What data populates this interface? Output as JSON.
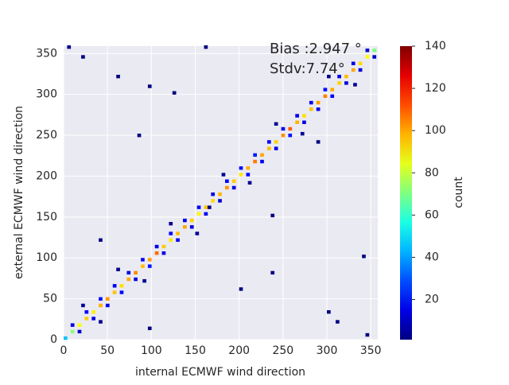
{
  "chart_data": {
    "type": "hist2d",
    "xlabel": "internal ECMWF wind direction",
    "ylabel": "external ECMWF wind direction",
    "annotations": [
      "Bias :2.947 °",
      "Stdv:7.74°"
    ],
    "colorbar_label": "count",
    "colormap": "jet",
    "bins": 90,
    "xlim": [
      0,
      358
    ],
    "ylim": [
      0,
      359
    ],
    "xticks": [
      0,
      50,
      100,
      150,
      200,
      250,
      300,
      350
    ],
    "yticks": [
      0,
      50,
      100,
      150,
      200,
      250,
      300,
      350
    ],
    "clim": [
      1,
      140
    ],
    "cticks": [
      20,
      40,
      60,
      80,
      100,
      120,
      140
    ],
    "grid": true,
    "cells": [
      [
        0,
        0,
        45
      ],
      [
        8,
        8,
        72
      ],
      [
        16,
        16,
        88
      ],
      [
        24,
        24,
        95
      ],
      [
        32,
        32,
        90
      ],
      [
        40,
        40,
        98
      ],
      [
        48,
        48,
        102
      ],
      [
        56,
        56,
        96
      ],
      [
        64,
        64,
        92
      ],
      [
        72,
        72,
        99
      ],
      [
        80,
        80,
        104
      ],
      [
        88,
        88,
        97
      ],
      [
        96,
        96,
        101
      ],
      [
        104,
        104,
        108
      ],
      [
        112,
        112,
        95
      ],
      [
        120,
        120,
        91
      ],
      [
        128,
        128,
        97
      ],
      [
        136,
        136,
        100
      ],
      [
        144,
        144,
        94
      ],
      [
        152,
        152,
        89
      ],
      [
        160,
        160,
        96
      ],
      [
        168,
        168,
        93
      ],
      [
        176,
        176,
        98
      ],
      [
        184,
        184,
        102
      ],
      [
        192,
        192,
        95
      ],
      [
        200,
        200,
        91
      ],
      [
        208,
        208,
        99
      ],
      [
        216,
        216,
        106
      ],
      [
        224,
        224,
        100
      ],
      [
        232,
        232,
        97
      ],
      [
        240,
        240,
        94
      ],
      [
        248,
        248,
        103
      ],
      [
        256,
        256,
        110
      ],
      [
        264,
        264,
        98
      ],
      [
        272,
        272,
        92
      ],
      [
        280,
        280,
        96
      ],
      [
        288,
        288,
        101
      ],
      [
        296,
        296,
        105
      ],
      [
        304,
        304,
        99
      ],
      [
        312,
        312,
        94
      ],
      [
        320,
        320,
        97
      ],
      [
        328,
        328,
        100
      ],
      [
        336,
        336,
        93
      ],
      [
        344,
        344,
        88
      ],
      [
        352,
        352,
        70
      ],
      [
        8,
        16,
        14
      ],
      [
        16,
        8,
        12
      ],
      [
        24,
        32,
        18
      ],
      [
        32,
        24,
        15
      ],
      [
        40,
        48,
        20
      ],
      [
        48,
        40,
        16
      ],
      [
        56,
        64,
        17
      ],
      [
        64,
        56,
        19
      ],
      [
        72,
        80,
        15
      ],
      [
        80,
        72,
        13
      ],
      [
        88,
        96,
        18
      ],
      [
        96,
        88,
        21
      ],
      [
        104,
        112,
        16
      ],
      [
        112,
        104,
        14
      ],
      [
        120,
        128,
        19
      ],
      [
        128,
        120,
        17
      ],
      [
        136,
        144,
        15
      ],
      [
        144,
        136,
        13
      ],
      [
        152,
        160,
        18
      ],
      [
        160,
        152,
        16
      ],
      [
        168,
        176,
        14
      ],
      [
        176,
        168,
        12
      ],
      [
        184,
        192,
        17
      ],
      [
        192,
        184,
        15
      ],
      [
        200,
        208,
        20
      ],
      [
        208,
        200,
        18
      ],
      [
        216,
        224,
        22
      ],
      [
        224,
        216,
        16
      ],
      [
        232,
        240,
        19
      ],
      [
        240,
        232,
        15
      ],
      [
        248,
        256,
        17
      ],
      [
        256,
        248,
        21
      ],
      [
        264,
        272,
        16
      ],
      [
        272,
        264,
        14
      ],
      [
        280,
        288,
        18
      ],
      [
        288,
        280,
        15
      ],
      [
        296,
        304,
        20
      ],
      [
        304,
        296,
        17
      ],
      [
        312,
        320,
        16
      ],
      [
        320,
        312,
        14
      ],
      [
        328,
        336,
        15
      ],
      [
        336,
        328,
        13
      ],
      [
        344,
        352,
        12
      ],
      [
        352,
        344,
        10
      ],
      [
        20,
        40,
        4
      ],
      [
        40,
        20,
        3
      ],
      [
        60,
        84,
        3
      ],
      [
        90,
        70,
        4
      ],
      [
        120,
        140,
        3
      ],
      [
        150,
        128,
        4
      ],
      [
        180,
        200,
        3
      ],
      [
        210,
        190,
        4
      ],
      [
        240,
        262,
        3
      ],
      [
        270,
        250,
        4
      ],
      [
        300,
        320,
        3
      ],
      [
        330,
        310,
        4
      ],
      [
        4,
        356,
        2
      ],
      [
        84,
        248,
        1
      ],
      [
        40,
        120,
        1
      ],
      [
        96,
        308,
        1
      ],
      [
        200,
        60,
        1
      ],
      [
        310,
        20,
        2
      ],
      [
        340,
        100,
        1
      ],
      [
        236,
        80,
        1
      ],
      [
        164,
        160,
        1
      ],
      [
        160,
        356,
        1
      ],
      [
        288,
        240,
        1
      ],
      [
        96,
        12,
        1
      ],
      [
        60,
        320,
        1
      ],
      [
        20,
        344,
        1
      ],
      [
        344,
        4,
        1
      ],
      [
        300,
        32,
        1
      ],
      [
        236,
        150,
        1
      ],
      [
        124,
        300,
        1
      ]
    ]
  }
}
